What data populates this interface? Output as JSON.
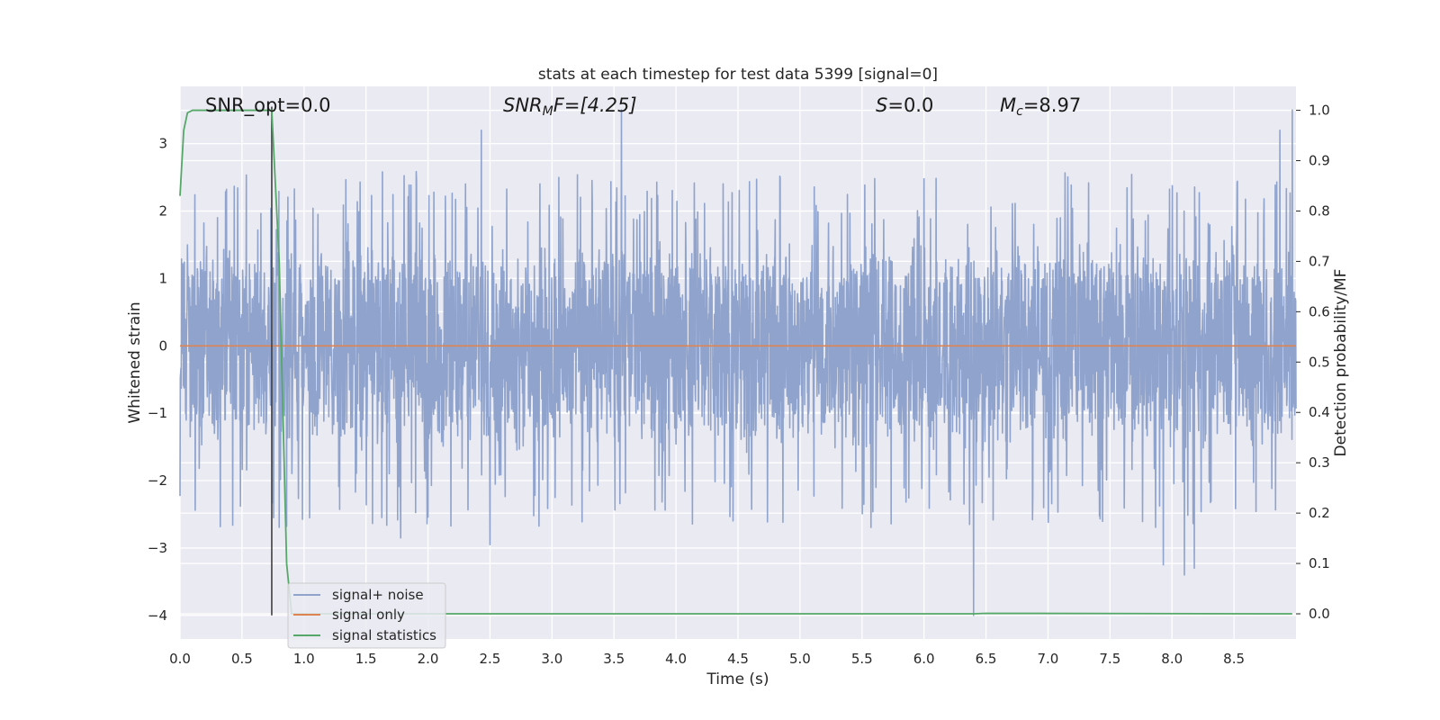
{
  "chart_data": {
    "type": "line",
    "title": "stats at each timestep for test data 5399 [signal=0]",
    "xlabel": "Time (s)",
    "ylabel": "Whitened strain",
    "y2label": "Detection probability/MF",
    "xlim": [
      0.0,
      9.0
    ],
    "ylim": [
      -4.35,
      3.85
    ],
    "y2lim": [
      -0.05,
      1.0475
    ],
    "xticks": [
      0.0,
      0.5,
      1.0,
      1.5,
      2.0,
      2.5,
      3.0,
      3.5,
      4.0,
      4.5,
      5.0,
      5.5,
      6.0,
      6.5,
      7.0,
      7.5,
      8.0,
      8.5
    ],
    "xtick_labels": [
      "0.0",
      "0.5",
      "1.0",
      "1.5",
      "2.0",
      "2.5",
      "3.0",
      "3.5",
      "4.0",
      "4.5",
      "5.0",
      "5.5",
      "6.0",
      "6.5",
      "7.0",
      "7.5",
      "8.0",
      "8.5"
    ],
    "yticks": [
      -4,
      -3,
      -2,
      -1,
      0,
      1,
      2,
      3
    ],
    "ytick_labels": [
      "−4",
      "−3",
      "−2",
      "−1",
      "0",
      "1",
      "2",
      "3"
    ],
    "y2ticks": [
      0.0,
      0.1,
      0.2,
      0.3,
      0.4,
      0.5,
      0.6,
      0.7,
      0.8,
      0.9,
      1.0
    ],
    "y2tick_labels": [
      "0.0",
      "0.1",
      "0.2",
      "0.3",
      "0.4",
      "0.5",
      "0.6",
      "0.7",
      "0.8",
      "0.9",
      "1.0"
    ],
    "grid": true,
    "legend_position": "lower-left",
    "annotations": [
      {
        "id": "snr-opt",
        "text": "SNR_opt=0.0"
      },
      {
        "id": "snr-mf",
        "main": "SNR",
        "sub": "M",
        "rest": "F=[4.25]"
      },
      {
        "id": "s-value",
        "main": "S",
        "rest": "=0.0"
      },
      {
        "id": "mc-value",
        "main": "M",
        "sub": "c",
        "rest": "=8.97"
      }
    ],
    "series": [
      {
        "name": "signal+ noise",
        "color": "#8fa3cc",
        "axis": "left",
        "style": "dense noise",
        "typical_range": [
          -1.8,
          1.7
        ],
        "extreme_points": [
          {
            "x": 3.56,
            "y": 3.5
          },
          {
            "x": 8.97,
            "y": 3.5
          },
          {
            "x": 8.87,
            "y": 3.2
          },
          {
            "x": 2.43,
            "y": 3.2
          },
          {
            "x": 6.4,
            "y": -4.0
          },
          {
            "x": 8.1,
            "y": -3.4
          },
          {
            "x": 8.18,
            "y": -3.3
          },
          {
            "x": 7.93,
            "y": -3.25
          },
          {
            "x": 2.5,
            "y": -2.95
          },
          {
            "x": 1.78,
            "y": -2.85
          }
        ]
      },
      {
        "name": "signal only",
        "color": "#dd8452",
        "axis": "left",
        "x": [
          0.0,
          9.0
        ],
        "y": [
          0.0,
          0.0
        ]
      },
      {
        "name": "signal statistics",
        "color": "#55a868",
        "axis": "right",
        "x": [
          0.0,
          0.03,
          0.06,
          0.1,
          0.2,
          0.4,
          0.6,
          0.7,
          0.74,
          0.8,
          0.86,
          0.9,
          2.0,
          6.4,
          6.5,
          8.97
        ],
        "y": [
          0.83,
          0.96,
          0.995,
          1.0,
          1.0,
          1.0,
          1.0,
          1.0,
          1.0,
          0.7,
          0.1,
          0.0,
          0.0,
          0.0,
          0.001,
          0.0
        ]
      },
      {
        "name": "marker",
        "color": "#404040",
        "axis": "left",
        "x": [
          0.74,
          0.74
        ],
        "y": [
          -4.0,
          3.55
        ]
      }
    ]
  }
}
